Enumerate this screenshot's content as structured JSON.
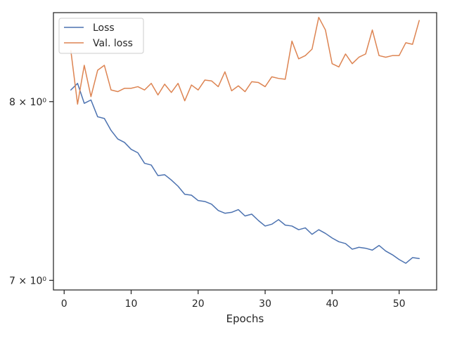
{
  "chart_data": {
    "type": "line",
    "title": "",
    "xlabel": "Epochs",
    "ylabel": "",
    "yscale": "log",
    "xlim": [
      -1.6,
      55.6
    ],
    "ylim": [
      6.95,
      8.55
    ],
    "grid": false,
    "legend_position": "top-left",
    "x_ticks": [
      0,
      10,
      20,
      30,
      40,
      50
    ],
    "x_tick_labels": [
      "0",
      "10",
      "20",
      "30",
      "40",
      "50"
    ],
    "y_ticks": [
      7,
      8
    ],
    "y_tick_labels": [
      "7 × 10⁰",
      "8 × 10⁰"
    ],
    "series": [
      {
        "name": "Loss",
        "color": "#4c72b0",
        "x": [
          1,
          2,
          3,
          4,
          5,
          6,
          7,
          8,
          9,
          10,
          11,
          12,
          13,
          14,
          15,
          16,
          17,
          18,
          19,
          20,
          21,
          22,
          23,
          24,
          25,
          26,
          27,
          28,
          29,
          30,
          31,
          32,
          33,
          34,
          35,
          36,
          37,
          38,
          39,
          40,
          41,
          42,
          43,
          44,
          45,
          46,
          47,
          48,
          49,
          50,
          51,
          52,
          53
        ],
        "values": [
          8.07,
          8.11,
          7.99,
          8.01,
          7.91,
          7.9,
          7.83,
          7.78,
          7.76,
          7.72,
          7.7,
          7.64,
          7.63,
          7.57,
          7.575,
          7.545,
          7.51,
          7.465,
          7.46,
          7.43,
          7.425,
          7.41,
          7.375,
          7.36,
          7.365,
          7.38,
          7.345,
          7.355,
          7.32,
          7.29,
          7.3,
          7.325,
          7.295,
          7.29,
          7.27,
          7.28,
          7.245,
          7.27,
          7.25,
          7.225,
          7.205,
          7.195,
          7.165,
          7.175,
          7.17,
          7.16,
          7.185,
          7.155,
          7.135,
          7.11,
          7.09,
          7.12,
          7.115
        ]
      },
      {
        "name": "Val. loss",
        "color": "#dd8452",
        "x": [
          1,
          2,
          3,
          4,
          5,
          6,
          7,
          8,
          9,
          10,
          11,
          12,
          13,
          14,
          15,
          16,
          17,
          18,
          19,
          20,
          21,
          22,
          23,
          24,
          25,
          26,
          27,
          28,
          29,
          30,
          31,
          32,
          33,
          34,
          35,
          36,
          37,
          38,
          39,
          40,
          41,
          42,
          43,
          44,
          45,
          46,
          47,
          48,
          49,
          50,
          51,
          52,
          53
        ],
        "values": [
          8.31,
          7.985,
          8.22,
          8.03,
          8.19,
          8.22,
          8.07,
          8.06,
          8.08,
          8.08,
          8.09,
          8.07,
          8.11,
          8.04,
          8.105,
          8.055,
          8.11,
          8.005,
          8.1,
          8.07,
          8.13,
          8.125,
          8.09,
          8.18,
          8.065,
          8.095,
          8.06,
          8.12,
          8.115,
          8.09,
          8.15,
          8.14,
          8.135,
          8.37,
          8.26,
          8.28,
          8.32,
          8.52,
          8.44,
          8.23,
          8.21,
          8.29,
          8.23,
          8.27,
          8.29,
          8.44,
          8.28,
          8.27,
          8.28,
          8.28,
          8.36,
          8.35,
          8.5
        ]
      }
    ]
  }
}
